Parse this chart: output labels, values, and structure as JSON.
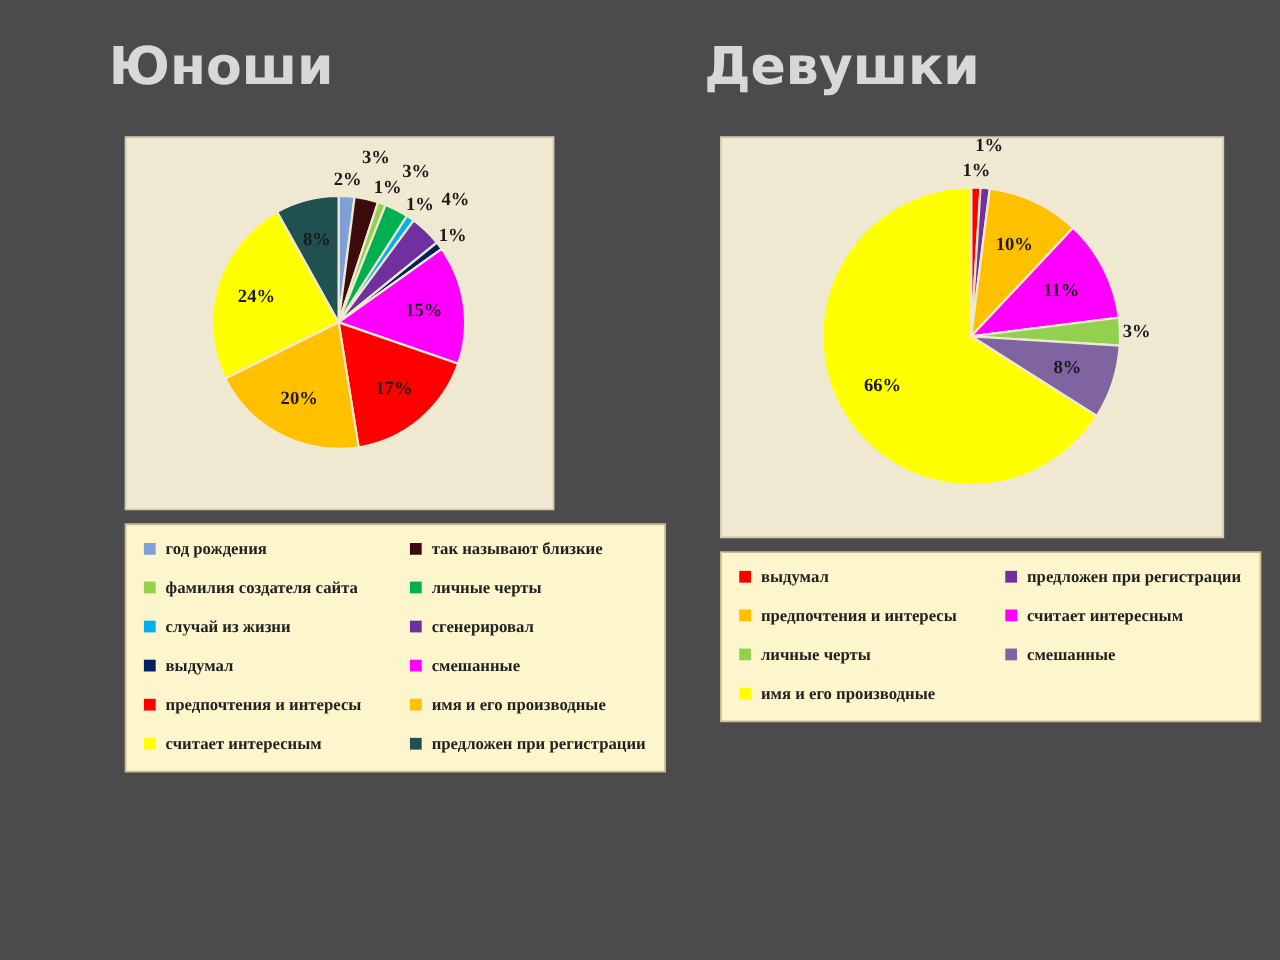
{
  "chart_data": [
    {
      "type": "pie",
      "title": "Юноши",
      "legend": "bottom",
      "categories": [
        "год рождения",
        "так называют близкие",
        "фамилия создателя сайта",
        "личные черты",
        "случай из жизни",
        "сгенерировал",
        "выдумал",
        "смешанные",
        "предпочтения и интересы",
        "имя и его производные",
        "считает интересным",
        "предложен при регистрации"
      ],
      "values": [
        2,
        3,
        1,
        3,
        1,
        4,
        1,
        15,
        17,
        20,
        24,
        8
      ],
      "colors": [
        "#7f9fd8",
        "#3a0c0c",
        "#92d050",
        "#00b050",
        "#00b0f0",
        "#7030a0",
        "#002060",
        "#ff00ff",
        "#ff0000",
        "#ffc000",
        "#ffff00",
        "#215050"
      ],
      "value_labels": [
        "2%",
        "3%",
        "1%",
        "3%",
        "1%",
        "4%",
        "1%",
        "15%",
        "17%",
        "20%",
        "24%",
        "8%"
      ]
    },
    {
      "type": "pie",
      "title": "Девушки",
      "legend": "bottom",
      "categories": [
        "выдумал",
        "предложен при регистрации",
        "предпочтения и интересы",
        "считает интересным",
        "личные черты",
        "смешанные",
        "имя и его производные"
      ],
      "values": [
        1,
        1,
        10,
        11,
        3,
        8,
        66
      ],
      "colors": [
        "#ff0000",
        "#7030a0",
        "#ffc000",
        "#ff00ff",
        "#92d050",
        "#8064a2",
        "#ffff00"
      ],
      "value_labels": [
        "1%",
        "1%",
        "10%",
        "11%",
        "3%",
        "8%",
        "66%"
      ]
    }
  ]
}
